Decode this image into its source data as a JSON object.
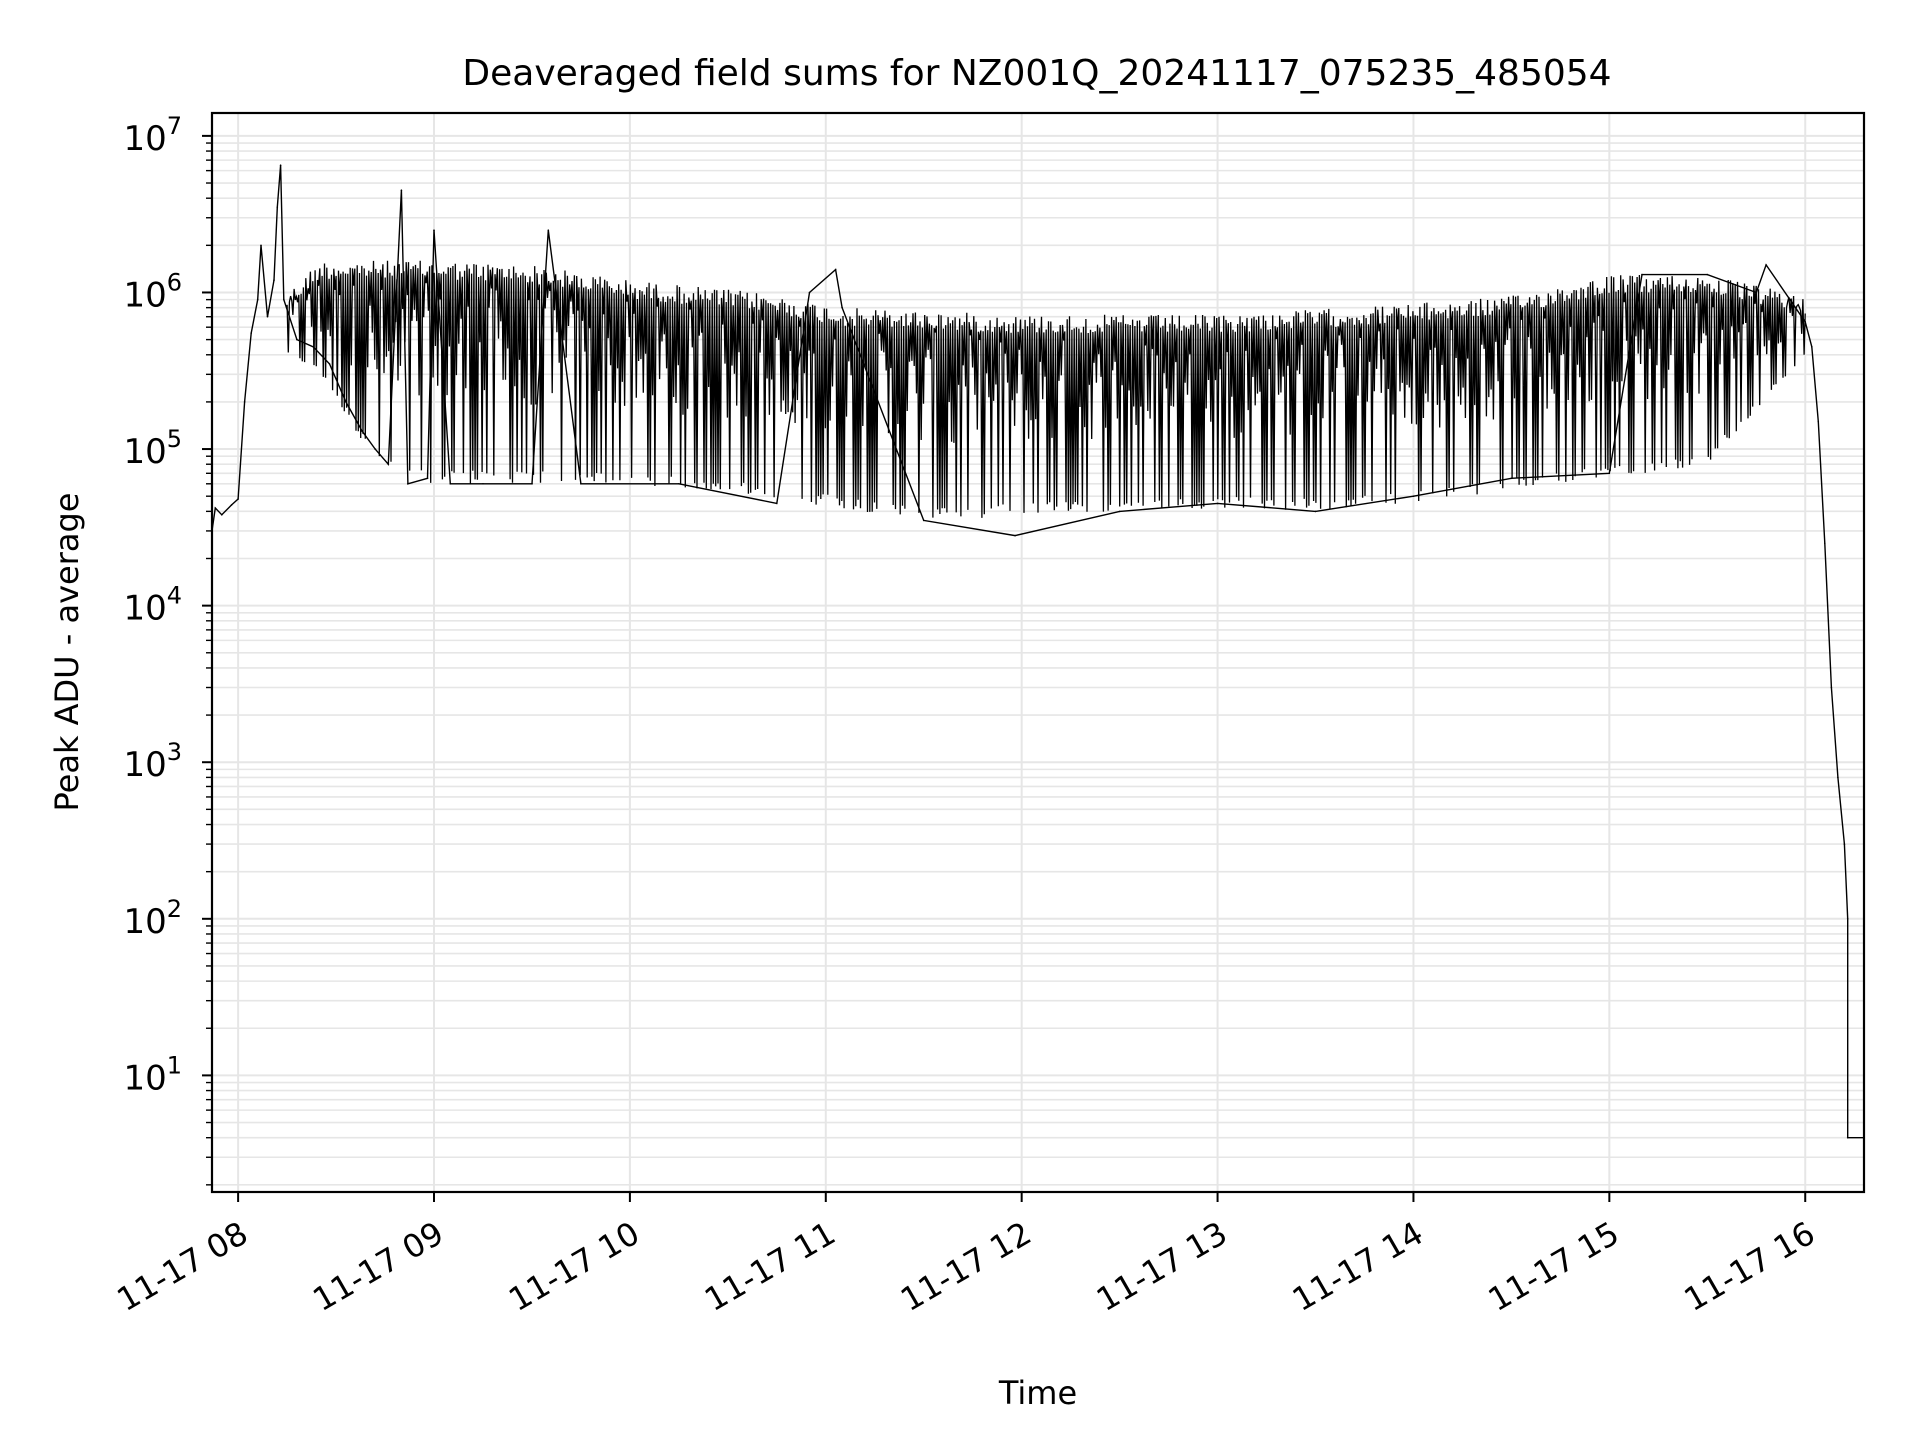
{
  "chart_data": {
    "type": "line",
    "title": "Deaveraged field sums for NZ001Q_20241117_075235_485054",
    "xlabel": "Time",
    "ylabel": "Peak ADU - average",
    "xscale": "time",
    "yscale": "log",
    "xlim": [
      "2024-11-17 07:52",
      "2024-11-17 16:18"
    ],
    "ylim": [
      1.8,
      14000000
    ],
    "grid": true,
    "grid_color": "#e6e6e6",
    "line_color": "#000000",
    "x_tick_labels": [
      "11-17 08",
      "11-17 09",
      "11-17 10",
      "11-17 11",
      "11-17 12",
      "11-17 13",
      "11-17 14",
      "11-17 15",
      "11-17 16"
    ],
    "y_tick_labels": [
      {
        "base": "10",
        "exp": "1"
      },
      {
        "base": "10",
        "exp": "2"
      },
      {
        "base": "10",
        "exp": "3"
      },
      {
        "base": "10",
        "exp": "4"
      },
      {
        "base": "10",
        "exp": "5"
      },
      {
        "base": "10",
        "exp": "6"
      },
      {
        "base": "10",
        "exp": "7"
      }
    ],
    "series": [
      {
        "points": [
          [
            "2024-11-17 07:52",
            30000
          ],
          [
            "2024-11-17 07:53",
            42000
          ],
          [
            "2024-11-17 07:55",
            38000
          ],
          [
            "2024-11-17 07:58",
            44000
          ],
          [
            "2024-11-17 08:00",
            48000
          ],
          [
            "2024-11-17 08:02",
            200000
          ],
          [
            "2024-11-17 08:04",
            550000
          ],
          [
            "2024-11-17 08:06",
            900000
          ],
          [
            "2024-11-17 08:07",
            2000000
          ],
          [
            "2024-11-17 08:09",
            700000
          ],
          [
            "2024-11-17 08:11",
            1200000
          ],
          [
            "2024-11-17 08:12",
            3500000
          ],
          [
            "2024-11-17 08:13",
            6500000
          ],
          [
            "2024-11-17 08:14",
            900000
          ],
          [
            "2024-11-17 08:18",
            500000
          ],
          [
            "2024-11-17 08:23",
            450000
          ],
          [
            "2024-11-17 08:28",
            350000
          ],
          [
            "2024-11-17 08:33",
            200000
          ],
          [
            "2024-11-17 08:38",
            130000
          ],
          [
            "2024-11-17 08:42",
            100000
          ],
          [
            "2024-11-17 08:46",
            80000
          ],
          [
            "2024-11-17 08:50",
            4500000
          ],
          [
            "2024-11-17 08:52",
            60000
          ],
          [
            "2024-11-17 08:58",
            65000
          ],
          [
            "2024-11-17 09:00",
            2500000
          ],
          [
            "2024-11-17 09:05",
            60000
          ],
          [
            "2024-11-17 09:15",
            60000
          ],
          [
            "2024-11-17 09:30",
            60000
          ],
          [
            "2024-11-17 09:35",
            2500000
          ],
          [
            "2024-11-17 09:45",
            60000
          ],
          [
            "2024-11-17 10:15",
            60000
          ],
          [
            "2024-11-17 10:45",
            45000
          ],
          [
            "2024-11-17 10:55",
            1000000
          ],
          [
            "2024-11-17 11:03",
            1400000
          ],
          [
            "2024-11-17 11:05",
            800000
          ],
          [
            "2024-11-17 11:30",
            35000
          ],
          [
            "2024-11-17 11:58",
            28000
          ],
          [
            "2024-11-17 12:30",
            40000
          ],
          [
            "2024-11-17 13:00",
            45000
          ],
          [
            "2024-11-17 13:30",
            40000
          ],
          [
            "2024-11-17 14:00",
            50000
          ],
          [
            "2024-11-17 14:30",
            65000
          ],
          [
            "2024-11-17 15:00",
            70000
          ],
          [
            "2024-11-17 15:10",
            1300000
          ],
          [
            "2024-11-17 15:30",
            1300000
          ],
          [
            "2024-11-17 15:45",
            1000000
          ],
          [
            "2024-11-17 15:48",
            1500000
          ],
          [
            "2024-11-17 16:00",
            650000
          ],
          [
            "2024-11-17 16:02",
            450000
          ],
          [
            "2024-11-17 16:04",
            150000
          ],
          [
            "2024-11-17 16:06",
            25000
          ],
          [
            "2024-11-17 16:08",
            3000
          ],
          [
            "2024-11-17 16:10",
            800
          ],
          [
            "2024-11-17 16:12",
            300
          ],
          [
            "2024-11-17 16:13",
            100
          ],
          [
            "2024-11-17 16:13",
            4
          ],
          [
            "2024-11-17 16:18",
            4
          ]
        ],
        "envelope": {
          "upper": [
            [
              "2024-11-17 08:15",
              1000000
            ],
            [
              "2024-11-17 08:25",
              1600000
            ],
            [
              "2024-11-17 09:00",
              1600000
            ],
            [
              "2024-11-17 09:30",
              1500000
            ],
            [
              "2024-11-17 10:00",
              1200000
            ],
            [
              "2024-11-17 10:40",
              1000000
            ],
            [
              "2024-11-17 11:05",
              800000
            ],
            [
              "2024-11-17 12:00",
              720000
            ],
            [
              "2024-11-17 13:00",
              720000
            ],
            [
              "2024-11-17 13:30",
              780000
            ],
            [
              "2024-11-17 14:00",
              850000
            ],
            [
              "2024-11-17 14:30",
              950000
            ],
            [
              "2024-11-17 15:00",
              1300000
            ],
            [
              "2024-11-17 15:30",
              1300000
            ],
            [
              "2024-11-17 16:00",
              950000
            ]
          ],
          "lower": [
            [
              "2024-11-17 08:15",
              400000
            ],
            [
              "2024-11-17 08:25",
              300000
            ],
            [
              "2024-11-17 08:35",
              140000
            ],
            [
              "2024-11-17 08:45",
              70000
            ],
            [
              "2024-11-17 09:00",
              60000
            ],
            [
              "2024-11-17 09:30",
              60000
            ],
            [
              "2024-11-17 10:00",
              60000
            ],
            [
              "2024-11-17 10:40",
              50000
            ],
            [
              "2024-11-17 11:10",
              40000
            ],
            [
              "2024-11-17 11:40",
              35000
            ],
            [
              "2024-11-17 12:00",
              38000
            ],
            [
              "2024-11-17 12:30",
              40000
            ],
            [
              "2024-11-17 13:00",
              42000
            ],
            [
              "2024-11-17 13:30",
              40000
            ],
            [
              "2024-11-17 14:00",
              45000
            ],
            [
              "2024-11-17 14:30",
              55000
            ],
            [
              "2024-11-17 15:00",
              65000
            ],
            [
              "2024-11-17 15:30",
              80000
            ],
            [
              "2024-11-17 16:00",
              400000
            ]
          ]
        }
      }
    ]
  }
}
